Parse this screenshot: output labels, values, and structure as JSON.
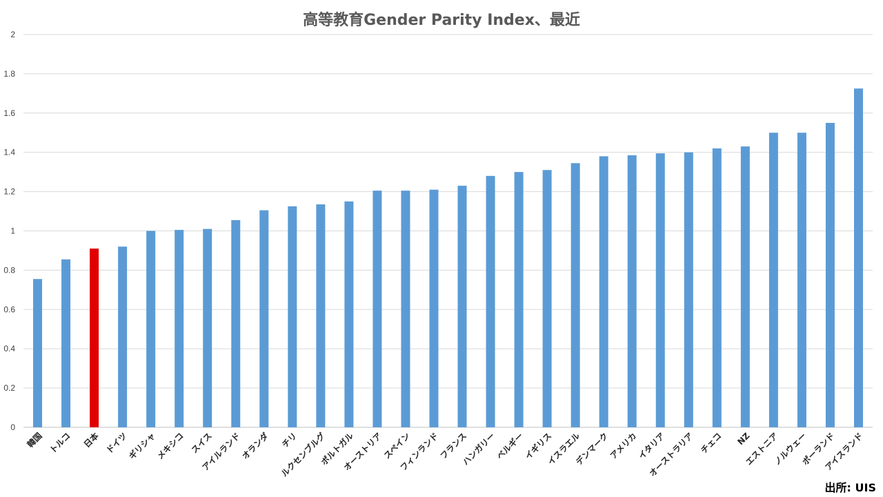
{
  "chart_data": {
    "type": "bar",
    "title": "高等教育Gender Parity Index、最近",
    "xlabel": "",
    "ylabel": "",
    "ylim": [
      0,
      2
    ],
    "yticks": [
      0,
      0.2,
      0.4,
      0.6,
      0.8,
      1,
      1.2,
      1.4,
      1.6,
      1.8,
      2
    ],
    "ytick_labels": [
      "0",
      "0.2",
      "0.4",
      "0.6",
      "0.8",
      "1",
      "1.2",
      "1.4",
      "1.6",
      "1.8",
      "2"
    ],
    "grid": true,
    "categories": [
      "韓国",
      "トルコ",
      "日本",
      "ドイツ",
      "ギリシャ",
      "メキシコ",
      "スイス",
      "アイルランド",
      "オランダ",
      "チリ",
      "ルクセンブルグ",
      "ポルトガル",
      "オーストリア",
      "スペイン",
      "フィンランド",
      "フランス",
      "ハンガリー",
      "ベルギー",
      "イギリス",
      "イスラエル",
      "デンマーク",
      "アメリカ",
      "イタリア",
      "オーストラリア",
      "チェコ",
      "NZ",
      "エストニア",
      "ノルウェー",
      "ポーランド",
      "アイスランド"
    ],
    "values": [
      0.755,
      0.855,
      0.91,
      0.92,
      1.0,
      1.005,
      1.01,
      1.055,
      1.105,
      1.125,
      1.135,
      1.15,
      1.205,
      1.205,
      1.21,
      1.23,
      1.28,
      1.3,
      1.31,
      1.345,
      1.38,
      1.385,
      1.395,
      1.4,
      1.42,
      1.43,
      1.5,
      1.5,
      1.55,
      1.725
    ],
    "colors": {
      "bar": "#5b9bd5",
      "highlight": "#e00000"
    },
    "highlight_category": "日本"
  },
  "source_label": "出所: UIS"
}
